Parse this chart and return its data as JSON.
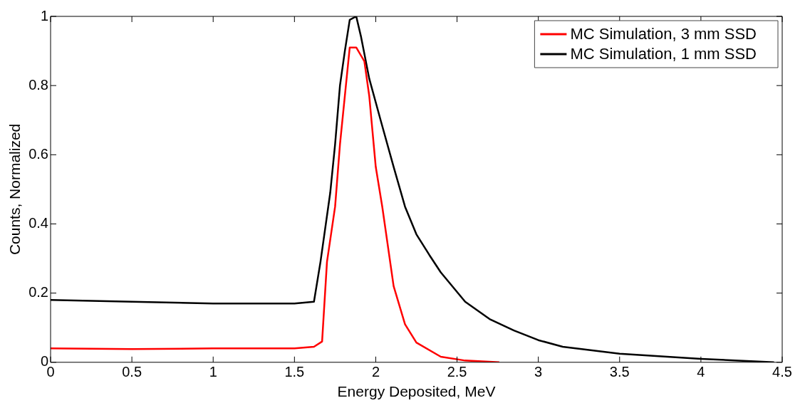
{
  "chart_data": {
    "type": "line",
    "xlabel": "Energy Deposited, MeV",
    "ylabel": "Counts, Normalized",
    "xlim": [
      0,
      4.5
    ],
    "xticks": [
      0,
      0.5,
      1,
      1.5,
      2,
      2.5,
      3,
      3.5,
      4,
      4.5
    ],
    "ylim": [
      0,
      1
    ],
    "yticks": [
      0,
      0.2,
      0.4,
      0.6,
      0.8,
      1
    ],
    "grid": false,
    "legend": "top right",
    "marker": "none",
    "line_style": "solid",
    "series": [
      {
        "name": "MC Simulation, 3 mm SSD",
        "color": "#ff0000",
        "x": [
          0,
          0.5,
          1,
          1.5,
          1.62,
          1.67,
          1.7,
          1.75,
          1.78,
          1.81,
          1.84,
          1.88,
          1.93,
          1.96,
          2.0,
          2.04,
          2.11,
          2.18,
          2.25,
          2.4,
          2.55,
          2.76
        ],
        "values": [
          0.04,
          0.038,
          0.04,
          0.04,
          0.045,
          0.06,
          0.29,
          0.45,
          0.63,
          0.77,
          0.91,
          0.91,
          0.87,
          0.77,
          0.565,
          0.45,
          0.22,
          0.11,
          0.057,
          0.016,
          0.005,
          0
        ]
      },
      {
        "name": "MC Simulation, 1 mm SSD",
        "color": "#000000",
        "x": [
          0,
          0.5,
          1,
          1.5,
          1.62,
          1.66,
          1.72,
          1.75,
          1.78,
          1.81,
          1.84,
          1.88,
          1.91,
          1.96,
          2.03,
          2.11,
          2.18,
          2.25,
          2.33,
          2.4,
          2.55,
          2.7,
          2.85,
          3.0,
          3.15,
          3.5,
          4.0,
          4.45
        ],
        "values": [
          0.18,
          0.175,
          0.17,
          0.17,
          0.175,
          0.29,
          0.49,
          0.63,
          0.8,
          0.9,
          0.99,
          1.0,
          0.94,
          0.82,
          0.7,
          0.565,
          0.45,
          0.37,
          0.31,
          0.26,
          0.175,
          0.125,
          0.092,
          0.064,
          0.045,
          0.025,
          0.01,
          0
        ]
      }
    ]
  }
}
